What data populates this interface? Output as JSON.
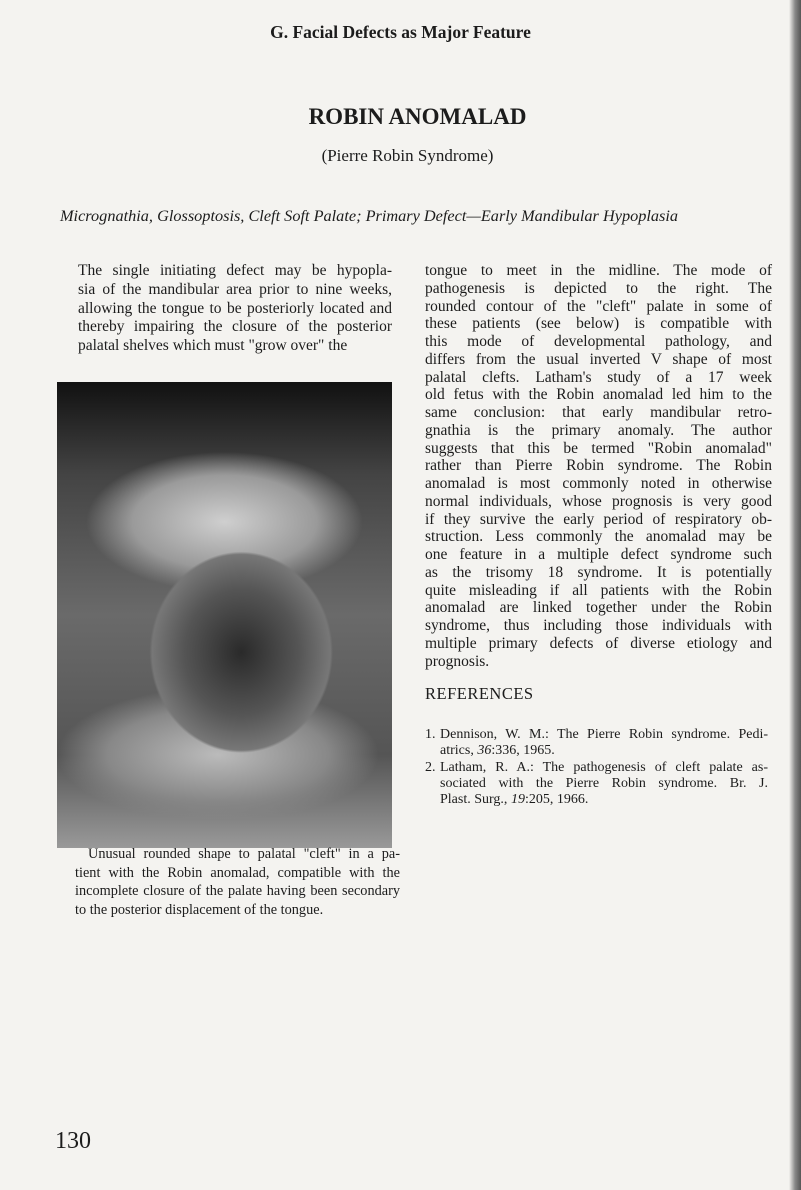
{
  "header": "G. Facial Defects as Major Feature",
  "title": "ROBIN ANOMALAD",
  "subtitle": "(Pierre Robin Syndrome)",
  "keywords": "Micrognathia, Glossoptosis, Cleft Soft Palate; Primary Defect—Early Mandibular Hypoplasia",
  "left_paragraph": [
    "The single initiating defect may be hypopla-",
    "sia of the mandibular area prior to nine weeks,",
    "allowing the tongue to be posteriorly located and",
    "thereby impairing the closure of the posterior",
    "palatal shelves which must \"grow over\" the"
  ],
  "caption": [
    "Unusual rounded shape to palatal \"cleft\" in a pa-",
    "tient with the Robin anomalad, compatible with the",
    "incomplete closure of the palate having been secondary",
    "to the posterior displacement of the tongue."
  ],
  "right_paragraph": [
    "tongue to meet in the midline. The mode of",
    "pathogenesis is depicted to the right. The",
    "rounded contour of the \"cleft\" palate in some of",
    "these patients (see below) is compatible with",
    "this mode of developmental pathology, and",
    "differs from the usual inverted V shape of most",
    "palatal clefts. Latham's study of a 17 week",
    "old fetus with the Robin anomalad led him to the",
    "same conclusion: that early mandibular retro-",
    "gnathia is the primary anomaly. The author",
    "suggests that this be termed \"Robin anomalad\"",
    "rather than Pierre Robin syndrome. The Robin",
    "anomalad is most commonly noted in otherwise",
    "normal individuals, whose prognosis is very good",
    "if they survive the early period of respiratory ob-",
    "struction. Less commonly the anomalad may be",
    "one feature in a multiple defect syndrome such",
    "as the trisomy 18 syndrome. It is potentially",
    "quite misleading if all patients with the Robin",
    "anomalad are linked together under the Robin",
    "syndrome, thus including those individuals with",
    "multiple primary defects of diverse etiology and",
    "prognosis."
  ],
  "references_heading": "REFERENCES",
  "references": [
    {
      "number": "1.",
      "lines": [
        [
          "Dennison, W. M.: The Pierre Robin syndrome. Pedi-"
        ],
        [
          "atrics, ",
          "36",
          ":336, 1965."
        ]
      ]
    },
    {
      "number": "2.",
      "lines": [
        [
          "Latham, R. A.: The pathogenesis of cleft palate as-"
        ],
        [
          "sociated with the Pierre Robin syndrome. Br. J."
        ],
        [
          "Plast. Surg., ",
          "19",
          ":205, 1966."
        ]
      ]
    }
  ],
  "page_number": "130"
}
